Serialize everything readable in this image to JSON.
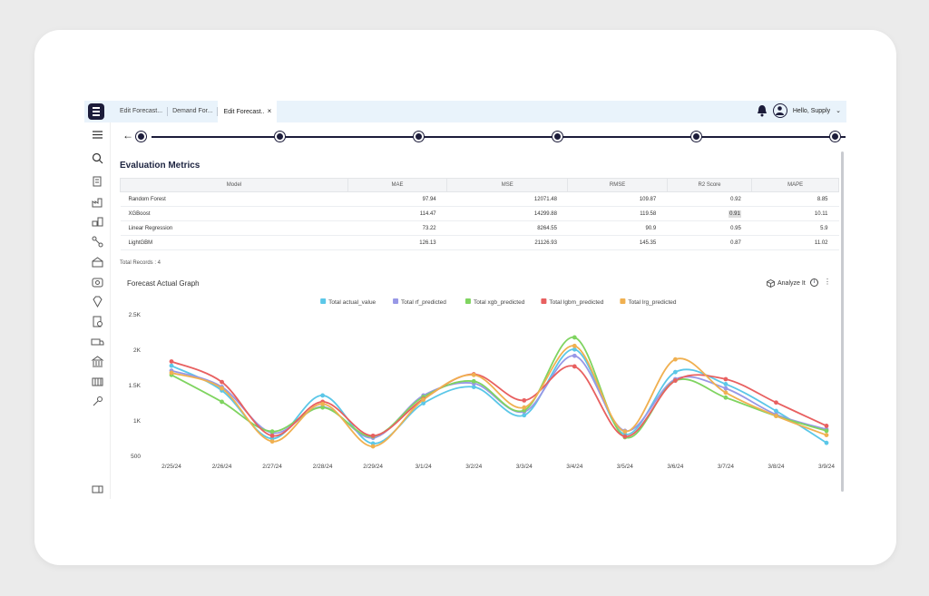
{
  "tabs": [
    {
      "label": "Edit Forecast..."
    },
    {
      "label": "Demand For..."
    },
    {
      "label": "Edit Forecast..",
      "close": "×"
    }
  ],
  "user": {
    "greeting": "Hello, Supply"
  },
  "page": {
    "title": "Evaluation Metrics",
    "total_records": "Total Records : 4"
  },
  "table": {
    "headers": [
      "Model",
      "MAE",
      "MSE",
      "RMSE",
      "R2 Score",
      "MAPE"
    ],
    "rows": [
      [
        "Random Forest",
        "97.94",
        "12071.48",
        "109.87",
        "0.92",
        "8.85"
      ],
      [
        "XGBoost",
        "114.47",
        "14299.88",
        "119.58",
        "0.91",
        "10.11"
      ],
      [
        "Linear Regression",
        "73.22",
        "8264.55",
        "90.9",
        "0.95",
        "5.9"
      ],
      [
        "LightGBM",
        "126.13",
        "21126.93",
        "145.35",
        "0.87",
        "11.02"
      ]
    ]
  },
  "chart_header": {
    "title": "Forecast Actual Graph",
    "analyze_label": "Analyze It"
  },
  "colors": {
    "Total actual_value": "#5bc7e8",
    "Total rf_predicted": "#9898e6",
    "Total xgb_predicted": "#7fd460",
    "Total lgbm_predicted": "#e86060",
    "Total lrg_predicted": "#f0b050"
  },
  "chart_data": {
    "type": "line",
    "categories": [
      "2/25/24",
      "2/26/24",
      "2/27/24",
      "2/28/24",
      "2/29/24",
      "3/1/24",
      "3/2/24",
      "3/3/24",
      "3/4/24",
      "3/5/24",
      "3/6/24",
      "3/7/24",
      "3/8/24",
      "3/9/24"
    ],
    "ylim": [
      500,
      2500
    ],
    "yticks": [
      500,
      1000,
      1500,
      2000,
      2500
    ],
    "ytick_labels": [
      "500",
      "1K",
      "1.5K",
      "2K",
      "2.5K"
    ],
    "legend_position": "top",
    "smooth": true,
    "series": [
      {
        "name": "Total actual_value",
        "values": [
          1780,
          1430,
          750,
          1360,
          680,
          1250,
          1480,
          1080,
          2010,
          810,
          1690,
          1520,
          1140,
          690
        ]
      },
      {
        "name": "Total rf_predicted",
        "values": [
          1710,
          1480,
          830,
          1200,
          760,
          1360,
          1530,
          1130,
          1920,
          860,
          1590,
          1460,
          1090,
          880
        ]
      },
      {
        "name": "Total xgb_predicted",
        "values": [
          1650,
          1270,
          850,
          1190,
          780,
          1340,
          1560,
          1150,
          2180,
          770,
          1570,
          1330,
          1070,
          860
        ]
      },
      {
        "name": "Total lgbm_predicted",
        "values": [
          1840,
          1550,
          790,
          1270,
          790,
          1310,
          1660,
          1290,
          1770,
          780,
          1570,
          1590,
          1260,
          930
        ]
      },
      {
        "name": "Total lrg_predicted",
        "values": [
          1680,
          1460,
          710,
          1240,
          640,
          1300,
          1650,
          1190,
          2060,
          850,
          1870,
          1400,
          1070,
          800
        ]
      }
    ]
  }
}
